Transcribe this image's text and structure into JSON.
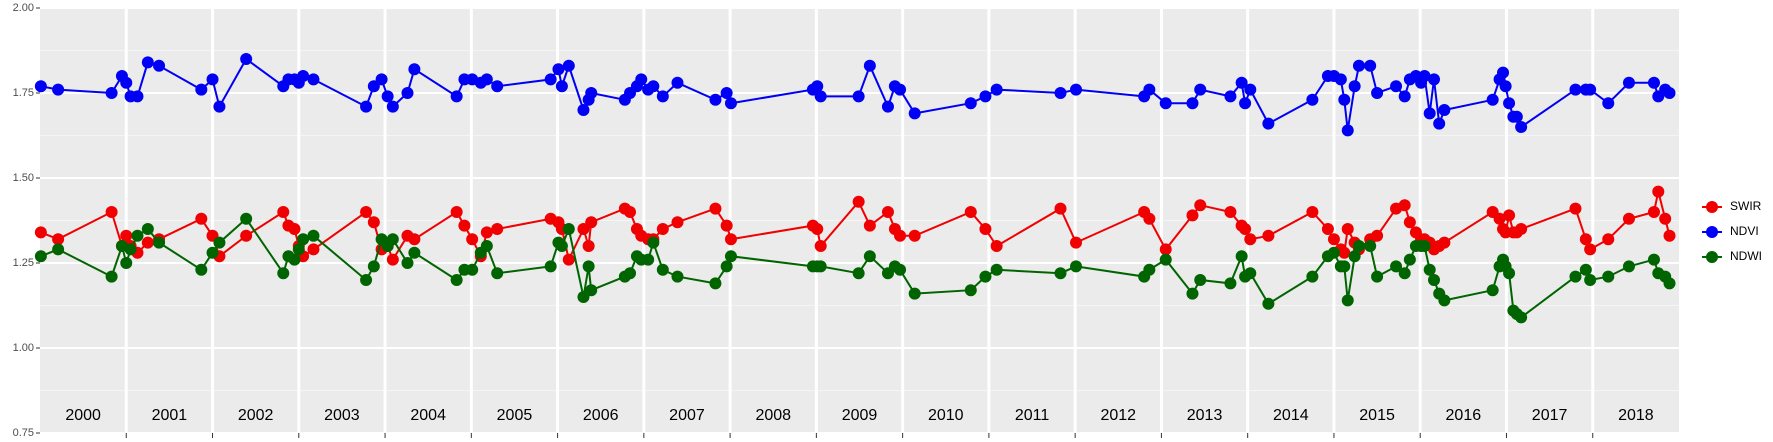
{
  "chart_data": {
    "type": "line",
    "x": [
      2000.01,
      2000.21,
      2000.83,
      2000.95,
      2001.0,
      2001.05,
      2001.13,
      2001.25,
      2001.38,
      2001.87,
      2002.0,
      2002.08,
      2002.39,
      2002.82,
      2002.88,
      2002.95,
      2003.0,
      2003.05,
      2003.17,
      2003.78,
      2003.87,
      2003.96,
      2004.03,
      2004.09,
      2004.26,
      2004.34,
      2004.83,
      2004.92,
      2005.01,
      2005.11,
      2005.18,
      2005.3,
      2005.92,
      2006.01,
      2006.05,
      2006.13,
      2006.3,
      2006.36,
      2006.39,
      2006.78,
      2006.84,
      2006.92,
      2006.97,
      2007.05,
      2007.11,
      2007.22,
      2007.39,
      2007.83,
      2007.96,
      2008.01,
      2008.96,
      2009.01,
      2009.05,
      2009.49,
      2009.62,
      2009.83,
      2009.91,
      2009.97,
      2010.14,
      2010.79,
      2010.96,
      2011.09,
      2011.83,
      2012.01,
      2012.8,
      2012.86,
      2013.05,
      2013.36,
      2013.45,
      2013.8,
      2013.93,
      2013.97,
      2014.03,
      2014.24,
      2014.75,
      2014.93,
      2015.0,
      2015.08,
      2015.12,
      2015.16,
      2015.24,
      2015.29,
      2015.42,
      2015.5,
      2015.72,
      2015.82,
      2015.88,
      2015.95,
      2016.01,
      2016.05,
      2016.11,
      2016.16,
      2016.22,
      2016.28,
      2016.84,
      2016.92,
      2016.96,
      2016.99,
      2017.03,
      2017.08,
      2017.12,
      2017.17,
      2017.8,
      2017.92,
      2017.97,
      2018.18,
      2018.42,
      2018.71,
      2018.76,
      2018.84,
      2018.89
    ],
    "series": [
      {
        "name": "SWIR",
        "color": "#f00000",
        "values": [
          1.34,
          1.32,
          1.4,
          1.3,
          1.33,
          1.3,
          1.28,
          1.31,
          1.32,
          1.38,
          1.33,
          1.27,
          1.33,
          1.4,
          1.36,
          1.35,
          1.3,
          1.27,
          1.29,
          1.4,
          1.37,
          1.29,
          1.3,
          1.26,
          1.33,
          1.32,
          1.4,
          1.36,
          1.32,
          1.27,
          1.34,
          1.35,
          1.38,
          1.37,
          1.35,
          1.26,
          1.35,
          1.3,
          1.37,
          1.41,
          1.4,
          1.35,
          1.33,
          1.32,
          1.32,
          1.35,
          1.37,
          1.41,
          1.36,
          1.32,
          1.36,
          1.35,
          1.3,
          1.43,
          1.36,
          1.4,
          1.35,
          1.33,
          1.33,
          1.4,
          1.35,
          1.3,
          1.41,
          1.31,
          1.4,
          1.38,
          1.29,
          1.39,
          1.42,
          1.4,
          1.36,
          1.35,
          1.32,
          1.33,
          1.4,
          1.35,
          1.32,
          1.29,
          1.28,
          1.35,
          1.31,
          1.29,
          1.32,
          1.33,
          1.41,
          1.42,
          1.37,
          1.34,
          1.32,
          1.32,
          1.31,
          1.29,
          1.3,
          1.31,
          1.4,
          1.38,
          1.35,
          1.34,
          1.39,
          1.34,
          1.34,
          1.35,
          1.41,
          1.32,
          1.29,
          1.32,
          1.38,
          1.4,
          1.46,
          1.38,
          1.33
        ]
      },
      {
        "name": "NDVI",
        "color": "#0000f5",
        "values": [
          1.77,
          1.76,
          1.75,
          1.8,
          1.78,
          1.74,
          1.74,
          1.84,
          1.83,
          1.76,
          1.79,
          1.71,
          1.85,
          1.77,
          1.79,
          1.79,
          1.78,
          1.8,
          1.79,
          1.71,
          1.77,
          1.79,
          1.74,
          1.71,
          1.75,
          1.82,
          1.74,
          1.79,
          1.79,
          1.78,
          1.79,
          1.77,
          1.79,
          1.82,
          1.77,
          1.83,
          1.7,
          1.73,
          1.75,
          1.73,
          1.75,
          1.77,
          1.79,
          1.76,
          1.77,
          1.74,
          1.78,
          1.73,
          1.75,
          1.72,
          1.76,
          1.77,
          1.74,
          1.74,
          1.83,
          1.71,
          1.77,
          1.76,
          1.69,
          1.72,
          1.74,
          1.76,
          1.75,
          1.76,
          1.74,
          1.76,
          1.72,
          1.72,
          1.76,
          1.74,
          1.78,
          1.72,
          1.76,
          1.66,
          1.73,
          1.8,
          1.8,
          1.79,
          1.73,
          1.64,
          1.77,
          1.83,
          1.83,
          1.75,
          1.77,
          1.74,
          1.79,
          1.8,
          1.78,
          1.8,
          1.69,
          1.79,
          1.66,
          1.7,
          1.73,
          1.79,
          1.81,
          1.77,
          1.72,
          1.68,
          1.68,
          1.65,
          1.76,
          1.76,
          1.76,
          1.72,
          1.78,
          1.78,
          1.74,
          1.76,
          1.75
        ]
      },
      {
        "name": "NDWI",
        "color": "#006400",
        "values": [
          1.27,
          1.29,
          1.21,
          1.3,
          1.25,
          1.29,
          1.33,
          1.35,
          1.31,
          1.23,
          1.28,
          1.31,
          1.38,
          1.22,
          1.27,
          1.26,
          1.29,
          1.32,
          1.33,
          1.2,
          1.24,
          1.32,
          1.3,
          1.32,
          1.25,
          1.28,
          1.2,
          1.23,
          1.23,
          1.28,
          1.3,
          1.22,
          1.24,
          1.31,
          1.3,
          1.35,
          1.15,
          1.24,
          1.17,
          1.21,
          1.22,
          1.27,
          1.26,
          1.26,
          1.31,
          1.23,
          1.21,
          1.19,
          1.24,
          1.27,
          1.24,
          1.24,
          1.24,
          1.22,
          1.27,
          1.22,
          1.24,
          1.23,
          1.16,
          1.17,
          1.21,
          1.23,
          1.22,
          1.24,
          1.21,
          1.23,
          1.26,
          1.16,
          1.2,
          1.19,
          1.27,
          1.21,
          1.22,
          1.13,
          1.21,
          1.27,
          1.28,
          1.24,
          1.24,
          1.14,
          1.27,
          1.3,
          1.3,
          1.21,
          1.24,
          1.22,
          1.26,
          1.3,
          1.3,
          1.3,
          1.23,
          1.2,
          1.16,
          1.14,
          1.17,
          1.24,
          1.26,
          1.24,
          1.22,
          1.11,
          1.1,
          1.09,
          1.21,
          1.23,
          1.2,
          1.21,
          1.24,
          1.26,
          1.22,
          1.21,
          1.19
        ]
      }
    ],
    "xlim": [
      2000,
      2019
    ],
    "ylim": [
      0.75,
      2.0
    ],
    "yticks": [
      0.75,
      {
        "value": 1.0,
        "label": "1.00"
      },
      1.25,
      {
        "value": 1.5,
        "label": "1.50"
      },
      1.75,
      {
        "value": 2.0,
        "label": "2.00"
      }
    ],
    "xticks": [
      {
        "value": 2000.5,
        "label": "2000"
      },
      {
        "value": 2001.5,
        "label": "2001"
      },
      {
        "value": 2002.5,
        "label": "2002"
      },
      {
        "value": 2003.5,
        "label": "2003"
      },
      {
        "value": 2004.5,
        "label": "2004"
      },
      {
        "value": 2005.5,
        "label": "2005"
      },
      {
        "value": 2006.5,
        "label": "2006"
      },
      {
        "value": 2007.5,
        "label": "2007"
      },
      {
        "value": 2008.5,
        "label": "2008"
      },
      {
        "value": 2009.5,
        "label": "2009"
      },
      {
        "value": 2010.5,
        "label": "2010"
      },
      {
        "value": 2011.5,
        "label": "2011"
      },
      {
        "value": 2012.5,
        "label": "2012"
      },
      {
        "value": 2013.5,
        "label": "2013"
      },
      {
        "value": 2014.5,
        "label": "2014"
      },
      {
        "value": 2015.5,
        "label": "2015"
      },
      {
        "value": 2016.5,
        "label": "2016"
      },
      {
        "value": 2017.5,
        "label": "2017"
      },
      {
        "value": 2018.5,
        "label": "2018"
      }
    ],
    "year_lines": [
      2001,
      2002,
      2003,
      2004,
      2005,
      2006,
      2007,
      2008,
      2009,
      2010,
      2011,
      2012,
      2013,
      2014,
      2015,
      2016,
      2017,
      2018
    ],
    "grid": true,
    "legend": "right"
  }
}
